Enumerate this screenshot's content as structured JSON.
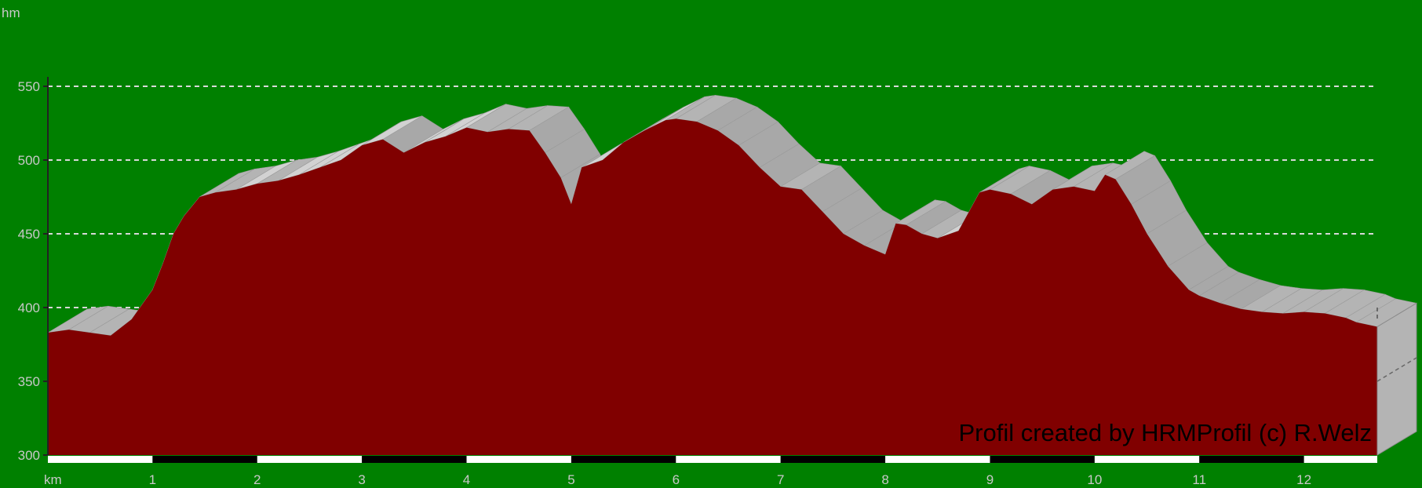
{
  "chart_data": {
    "type": "area",
    "title": "",
    "xlabel": "km",
    "ylabel": "hm",
    "xlim": [
      0,
      12.7
    ],
    "ylim": [
      300,
      550
    ],
    "yticks": [
      300,
      350,
      400,
      450,
      500,
      550
    ],
    "xticks": [
      1,
      2,
      3,
      4,
      5,
      6,
      7,
      8,
      9,
      10,
      11,
      12
    ],
    "grid": true,
    "credit": "Profil created by HRMProfil (c) R.Welz",
    "colors": {
      "background": "#008000",
      "fill": "#800000",
      "side": "#b4b4b4",
      "grid": "#d8d8d8",
      "text": "#c8c8c8"
    },
    "series": [
      {
        "x": [
          0,
          0.2,
          0.4,
          0.6,
          0.8,
          1.0,
          1.1,
          1.2,
          1.3,
          1.45,
          1.6,
          1.8,
          2.0,
          2.2,
          2.4,
          2.6,
          2.8,
          3.0,
          3.2,
          3.4,
          3.6,
          3.8,
          4.0,
          4.2,
          4.4,
          4.6,
          4.75,
          4.9,
          5.0,
          5.1,
          5.3,
          5.5,
          5.7,
          5.9,
          6.0,
          6.2,
          6.4,
          6.6,
          6.8,
          7.0,
          7.2,
          7.4,
          7.6,
          7.8,
          8.0,
          8.1,
          8.2,
          8.35,
          8.5,
          8.7,
          8.9,
          9.0,
          9.2,
          9.4,
          9.6,
          9.8,
          10.0,
          10.1,
          10.2,
          10.35,
          10.5,
          10.7,
          10.9,
          11.0,
          11.2,
          11.4,
          11.6,
          11.8,
          12.0,
          12.2,
          12.4,
          12.5,
          12.7
        ],
        "y": [
          383,
          385,
          383,
          381,
          392,
          412,
          430,
          450,
          462,
          475,
          478,
          480,
          484,
          486,
          490,
          495,
          500,
          510,
          514,
          505,
          512,
          516,
          522,
          519,
          521,
          520,
          505,
          488,
          470,
          495,
          500,
          512,
          520,
          527,
          528,
          526,
          520,
          510,
          495,
          482,
          480,
          465,
          450,
          442,
          436,
          457,
          456,
          450,
          447,
          452,
          478,
          480,
          477,
          470,
          480,
          482,
          479,
          490,
          487,
          470,
          450,
          428,
          412,
          408,
          403,
          399,
          397,
          396,
          397,
          396,
          393,
          390,
          387
        ]
      }
    ]
  }
}
